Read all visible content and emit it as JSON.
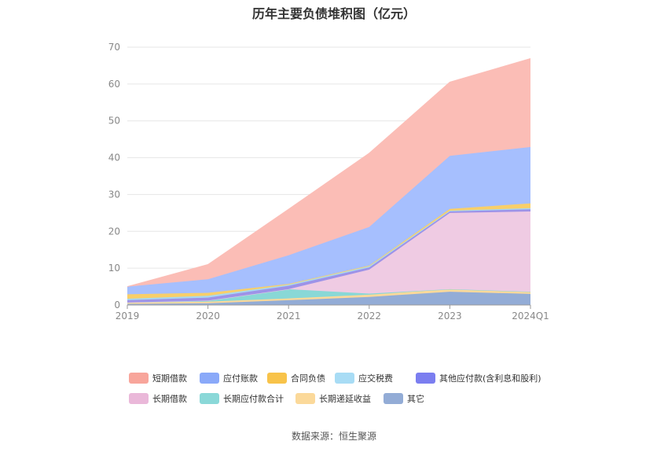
{
  "chart_data": {
    "type": "area",
    "stacked": true,
    "title": "历年主要负债堆积图（亿元）",
    "categories": [
      "2019",
      "2020",
      "2021",
      "2022",
      "2023",
      "2024Q1"
    ],
    "yticks": [
      "0",
      "10",
      "20",
      "30",
      "40",
      "50",
      "60",
      "70"
    ],
    "ylim": [
      0,
      70
    ],
    "grid": true,
    "legend_position": "bottom",
    "series": [
      {
        "name": "其它",
        "color": "#93acd6",
        "values": [
          0.3,
          0.5,
          1.3,
          2.2,
          3.6,
          3.0
        ]
      },
      {
        "name": "长期递延收益",
        "color": "#fcd99a",
        "values": [
          0.3,
          0.4,
          0.5,
          0.6,
          0.7,
          0.6
        ]
      },
      {
        "name": "长期应付款合计",
        "color": "#89d8d6",
        "values": [
          0.1,
          0.3,
          2.5,
          0.3,
          0.0,
          0.0
        ]
      },
      {
        "name": "长期借款",
        "color": "#efcbe3",
        "values": [
          0.0,
          0.0,
          0.0,
          6.5,
          20.7,
          21.8
        ]
      },
      {
        "name": "其他应付款(含利息和股利)",
        "color": "#9d93e8",
        "values": [
          0.6,
          0.8,
          0.9,
          0.6,
          0.4,
          0.6
        ]
      },
      {
        "name": "应交税费",
        "color": "#a8d8f0",
        "values": [
          0.4,
          0.5,
          0.3,
          0.3,
          0.2,
          0.3
        ]
      },
      {
        "name": "合同负债",
        "color": "#f8cf6a",
        "values": [
          1.2,
          0.8,
          0.2,
          0.2,
          0.5,
          1.3
        ]
      },
      {
        "name": "应付账款",
        "color": "#a6bffe",
        "values": [
          2.1,
          3.7,
          7.8,
          10.5,
          14.4,
          15.3
        ]
      },
      {
        "name": "短期借款",
        "color": "#fbbdb6",
        "values": [
          0.0,
          4.0,
          12.5,
          20.0,
          20.0,
          24.0
        ]
      }
    ]
  },
  "legend": {
    "items": [
      {
        "name": "短期借款",
        "color": "#f8a59b"
      },
      {
        "name": "应付账款",
        "color": "#8aa9f9"
      },
      {
        "name": "合同负债",
        "color": "#f8c34a"
      },
      {
        "name": "应交税费",
        "color": "#a8dcf5"
      },
      {
        "name": "其他应付款(含利息和股利)",
        "color": "#7b7ef0"
      },
      {
        "name": "长期借款",
        "color": "#eab8d9"
      },
      {
        "name": "长期应付款合计",
        "color": "#8ad8d8"
      },
      {
        "name": "长期递延收益",
        "color": "#fbd99a"
      },
      {
        "name": "其它",
        "color": "#93acd6"
      }
    ]
  },
  "footer": {
    "source": "数据来源：恒生聚源"
  }
}
